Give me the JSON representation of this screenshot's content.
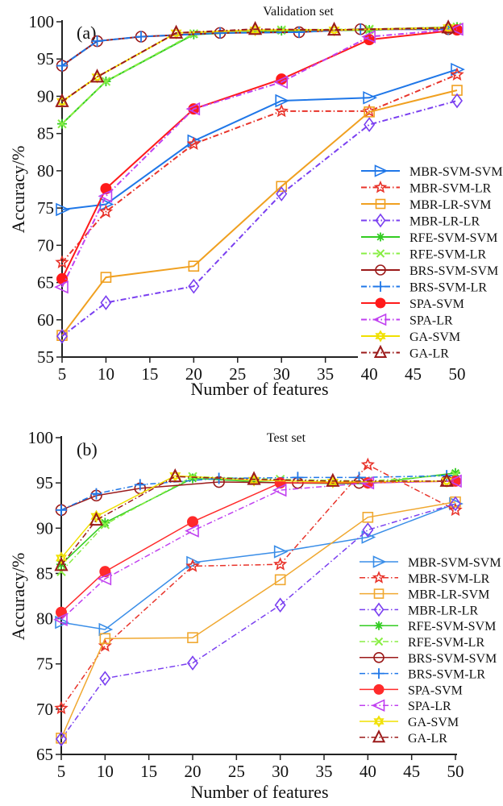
{
  "chart_data": [
    {
      "type": "line",
      "panel_label": "(a)",
      "title": "Validation set",
      "xlabel": "Number of features",
      "ylabel": "Accuracy/%",
      "xlim": [
        5,
        50
      ],
      "ylim": [
        55,
        100
      ],
      "xticks": [
        5,
        10,
        15,
        20,
        25,
        30,
        35,
        40,
        45,
        50
      ],
      "yticks": [
        55,
        60,
        65,
        70,
        75,
        80,
        85,
        90,
        95,
        100
      ],
      "grid": false,
      "legend_position": "right-bottom",
      "series": [
        {
          "name": "MBR-SVM-SVM",
          "color": "#1f77e8",
          "dash": "solid",
          "marker": "triangle-right",
          "x": [
            5,
            10,
            20,
            30,
            40,
            50
          ],
          "y": [
            74.8,
            75.5,
            84.0,
            89.4,
            89.8,
            93.6
          ]
        },
        {
          "name": "MBR-SVM-LR",
          "color": "#e8332a",
          "dash": "dashdot",
          "marker": "star",
          "x": [
            5,
            10,
            20,
            30,
            40,
            50
          ],
          "y": [
            67.7,
            74.5,
            83.6,
            88.0,
            88.0,
            92.9
          ]
        },
        {
          "name": "MBR-LR-SVM",
          "color": "#f0a020",
          "dash": "solid",
          "marker": "square",
          "x": [
            5,
            10,
            20,
            30,
            40,
            50
          ],
          "y": [
            57.9,
            65.7,
            67.2,
            77.9,
            87.9,
            90.8
          ]
        },
        {
          "name": "MBR-LR-LR",
          "color": "#7a3ff0",
          "dash": "dashdot",
          "marker": "diamond",
          "x": [
            5,
            10,
            20,
            30,
            40,
            50
          ],
          "y": [
            57.8,
            62.3,
            64.5,
            76.9,
            86.2,
            89.4
          ]
        },
        {
          "name": "RFE-SVM-SVM",
          "color": "#33cc22",
          "dash": "solid",
          "marker": "asterisk",
          "x": [
            5,
            10,
            20,
            30,
            40,
            50
          ],
          "y": [
            86.3,
            92.0,
            98.3,
            98.8,
            98.9,
            99.3
          ]
        },
        {
          "name": "RFE-SVM-LR",
          "color": "#88ee44",
          "dash": "dashdot",
          "marker": "x",
          "x": [
            5,
            10,
            20,
            30,
            40,
            50
          ],
          "y": [
            86.3,
            92.0,
            98.4,
            98.9,
            99.0,
            99.3
          ]
        },
        {
          "name": "BRS-SVM-SVM",
          "color": "#9b1a1a",
          "dash": "solid",
          "marker": "circle",
          "x": [
            5,
            9,
            14,
            23,
            32,
            39,
            49
          ],
          "y": [
            94.1,
            97.4,
            98.0,
            98.5,
            98.6,
            99.0,
            99.0
          ]
        },
        {
          "name": "BRS-SVM-LR",
          "color": "#1f77e8",
          "dash": "dashdot",
          "marker": "plus",
          "x": [
            5,
            9,
            14,
            23,
            32,
            39,
            49
          ],
          "y": [
            94.1,
            97.4,
            98.0,
            98.5,
            98.6,
            99.0,
            99.0
          ]
        },
        {
          "name": "SPA-SVM",
          "color": "#ff1a1a",
          "dash": "solid",
          "marker": "filled-circle",
          "x": [
            5,
            10,
            20,
            30,
            40,
            50
          ],
          "y": [
            65.5,
            77.6,
            88.3,
            92.3,
            97.6,
            98.9
          ]
        },
        {
          "name": "SPA-LR",
          "color": "#c040f0",
          "dash": "dashdot",
          "marker": "triangle-left",
          "x": [
            5,
            10,
            20,
            30,
            40,
            50
          ],
          "y": [
            64.4,
            76.6,
            88.3,
            91.9,
            98.0,
            99.0
          ]
        },
        {
          "name": "GA-SVM",
          "color": "#f0e000",
          "dash": "solid",
          "marker": "hexagram",
          "x": [
            5,
            9,
            18,
            27,
            36,
            49
          ],
          "y": [
            89.3,
            92.6,
            98.5,
            98.9,
            98.9,
            99.2
          ]
        },
        {
          "name": "GA-LR",
          "color": "#9b1a1a",
          "dash": "dashdot",
          "marker": "triangle-up",
          "x": [
            5,
            9,
            18,
            27,
            36,
            49
          ],
          "y": [
            89.3,
            92.6,
            98.5,
            99.0,
            98.9,
            99.2
          ]
        }
      ]
    },
    {
      "type": "line",
      "panel_label": "(b)",
      "title": "Test set",
      "xlabel": "Number of features",
      "ylabel": "Accuracy/%",
      "xlim": [
        5,
        50
      ],
      "ylim": [
        65,
        100
      ],
      "xticks": [
        5,
        10,
        15,
        20,
        25,
        30,
        35,
        40,
        45,
        50
      ],
      "yticks": [
        65,
        70,
        75,
        80,
        85,
        90,
        95,
        100
      ],
      "grid": false,
      "legend_position": "right-bottom",
      "series": [
        {
          "name": "MBR-SVM-SVM",
          "color": "#3a8ee8",
          "dash": "solid",
          "marker": "triangle-right",
          "x": [
            5,
            10,
            20,
            30,
            40,
            50
          ],
          "y": [
            79.6,
            78.8,
            86.2,
            87.4,
            89.0,
            92.7
          ]
        },
        {
          "name": "MBR-SVM-LR",
          "color": "#e8332a",
          "dash": "dashdot",
          "marker": "star",
          "x": [
            5,
            10,
            20,
            30,
            40,
            50
          ],
          "y": [
            70.1,
            77.0,
            85.8,
            86.0,
            97.0,
            92.0
          ]
        },
        {
          "name": "MBR-LR-SVM",
          "color": "#f0a830",
          "dash": "solid",
          "marker": "square",
          "x": [
            5,
            10,
            20,
            30,
            40,
            50
          ],
          "y": [
            66.8,
            77.8,
            77.9,
            84.3,
            91.2,
            92.9
          ]
        },
        {
          "name": "MBR-LR-LR",
          "color": "#7a3ff0",
          "dash": "dashdot",
          "marker": "diamond",
          "x": [
            5,
            10,
            20,
            30,
            40,
            50
          ],
          "y": [
            66.7,
            73.4,
            75.1,
            81.5,
            89.8,
            92.7
          ]
        },
        {
          "name": "RFE-SVM-SVM",
          "color": "#33cc22",
          "dash": "solid",
          "marker": "asterisk",
          "x": [
            5,
            10,
            20,
            30,
            40,
            50
          ],
          "y": [
            86.0,
            90.6,
            95.5,
            95.0,
            94.9,
            96.1
          ]
        },
        {
          "name": "RFE-SVM-LR",
          "color": "#88ee44",
          "dash": "dashdot",
          "marker": "x",
          "x": [
            5,
            10,
            20,
            30,
            40,
            50
          ],
          "y": [
            85.2,
            90.4,
            95.7,
            95.4,
            95.2,
            95.9
          ]
        },
        {
          "name": "BRS-SVM-SVM",
          "color": "#9b1a1a",
          "dash": "solid",
          "marker": "circle",
          "x": [
            5,
            9,
            14,
            23,
            32,
            39,
            49
          ],
          "y": [
            92.0,
            93.6,
            94.4,
            95.1,
            95.0,
            95.0,
            95.2
          ]
        },
        {
          "name": "BRS-SVM-LR",
          "color": "#1f77e8",
          "dash": "dashdot",
          "marker": "plus",
          "x": [
            5,
            9,
            14,
            23,
            32,
            39,
            49
          ],
          "y": [
            92.0,
            93.8,
            94.8,
            95.5,
            95.6,
            95.6,
            95.8
          ]
        },
        {
          "name": "SPA-SVM",
          "color": "#ff2a2a",
          "dash": "solid",
          "marker": "filled-circle",
          "x": [
            5,
            10,
            20,
            30,
            40,
            50
          ],
          "y": [
            80.7,
            85.2,
            90.7,
            95.0,
            95.0,
            95.2
          ]
        },
        {
          "name": "SPA-LR",
          "color": "#c040f0",
          "dash": "dashdot",
          "marker": "triangle-left",
          "x": [
            5,
            10,
            20,
            30,
            40,
            50
          ],
          "y": [
            79.9,
            84.4,
            89.7,
            94.2,
            95.0,
            95.2
          ]
        },
        {
          "name": "GA-SVM",
          "color": "#f0e000",
          "dash": "solid",
          "marker": "hexagram",
          "x": [
            5,
            9,
            18,
            27,
            36,
            49
          ],
          "y": [
            86.7,
            91.3,
            95.8,
            95.3,
            95.1,
            95.2
          ]
        },
        {
          "name": "GA-LR",
          "color": "#9b1a1a",
          "dash": "dashdot",
          "marker": "triangle-up",
          "x": [
            5,
            9,
            18,
            27,
            36,
            49
          ],
          "y": [
            85.9,
            90.9,
            95.7,
            95.4,
            95.2,
            95.2
          ]
        }
      ]
    }
  ]
}
